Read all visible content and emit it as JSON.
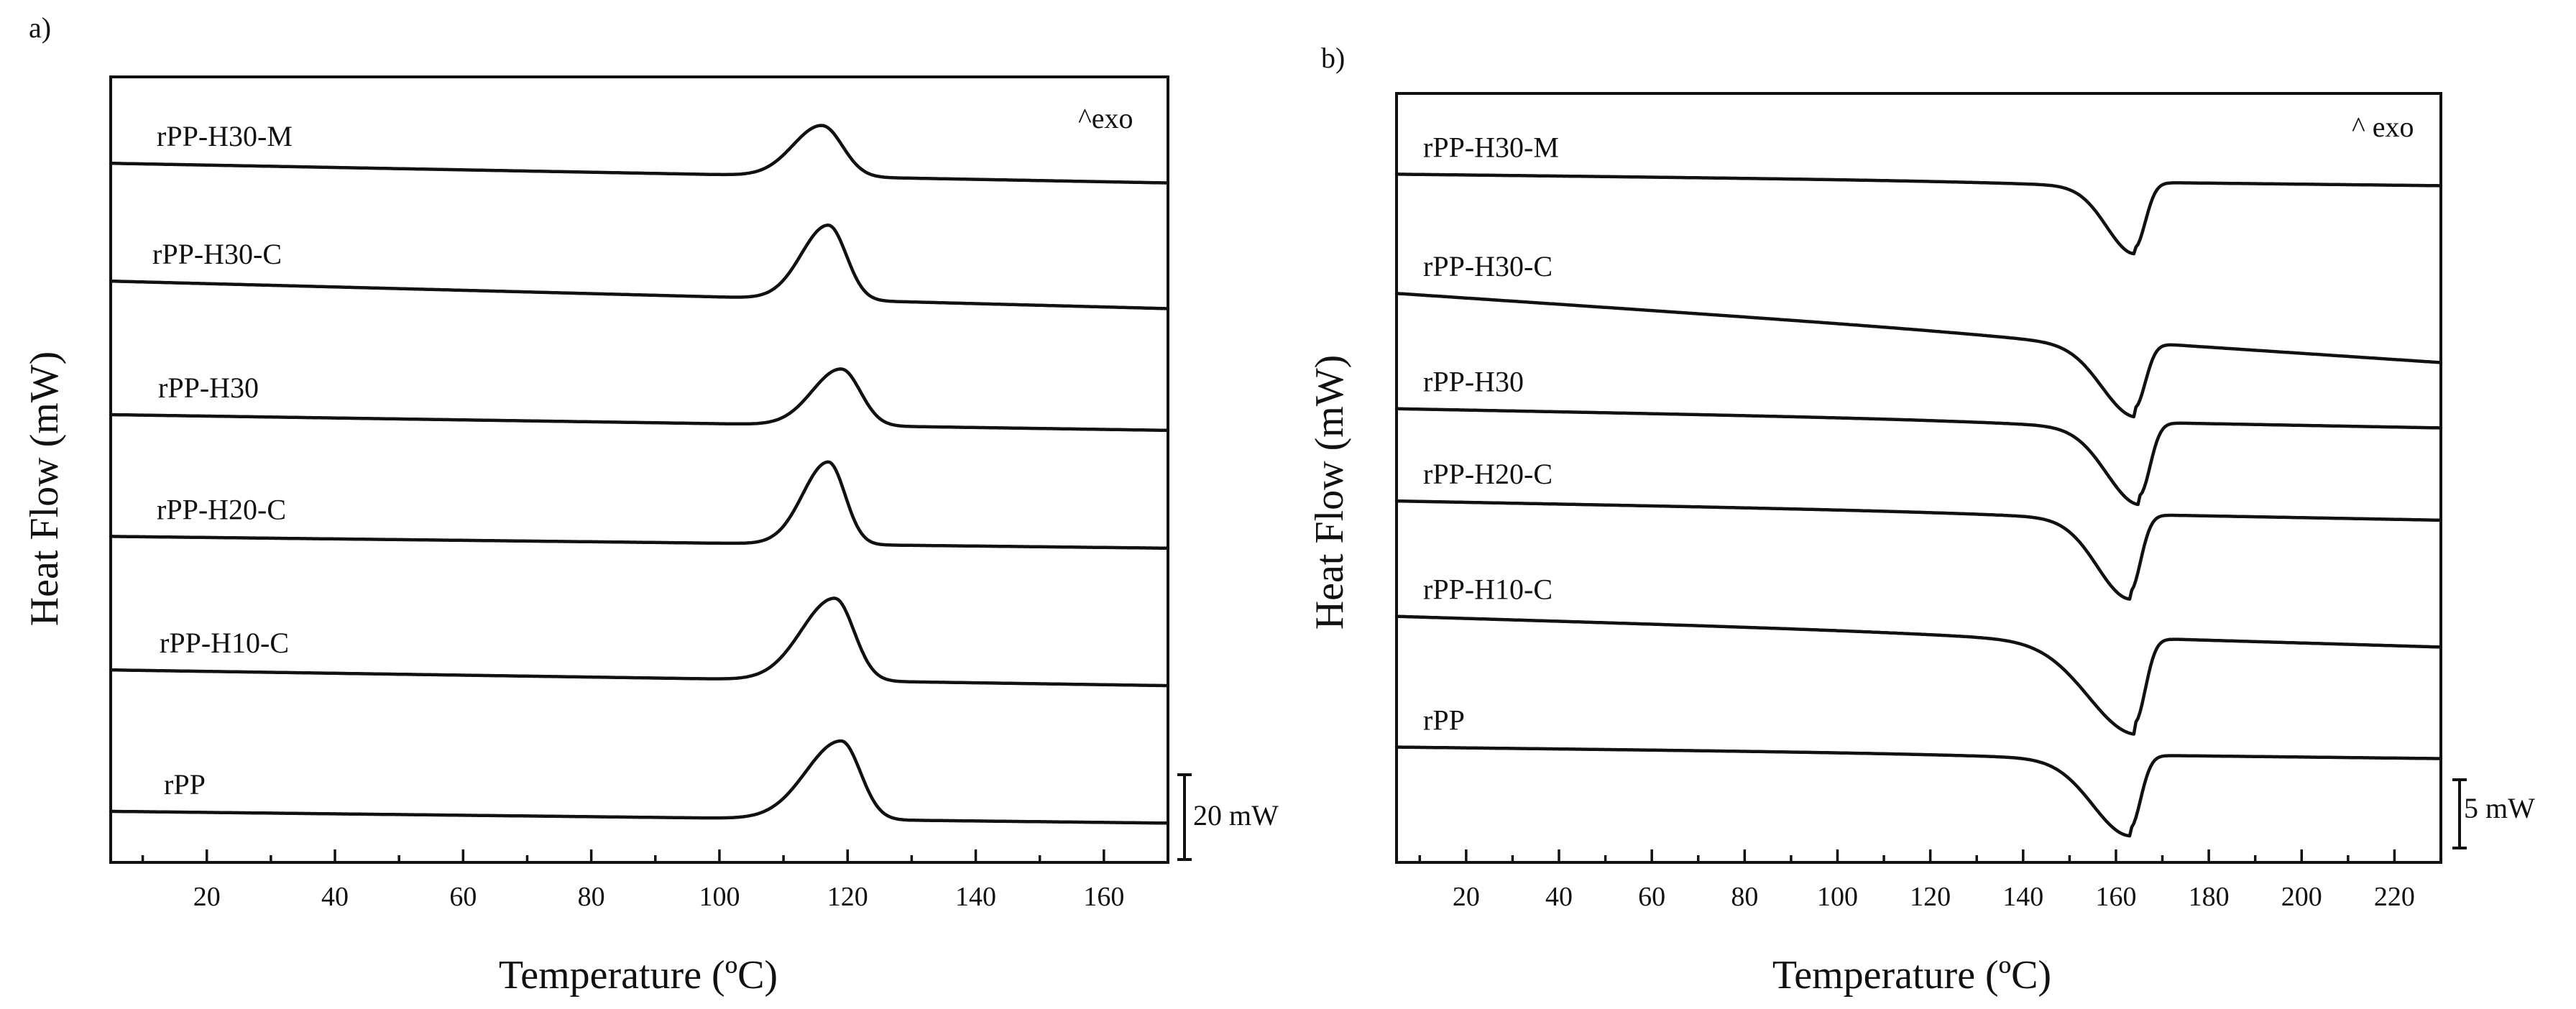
{
  "chart_data": [
    {
      "panel": "a)",
      "type": "line",
      "title": "",
      "xlabel": "Temperature (ºC)",
      "ylabel": "Heat Flow (mW)",
      "xlim": [
        5,
        170
      ],
      "xticks": [
        20,
        40,
        60,
        80,
        100,
        120,
        140,
        160
      ],
      "ylim": [
        0,
        100
      ],
      "grid": false,
      "exo_label": "^exo",
      "scale_bar": {
        "label": "20 mW",
        "value_mW": 20
      },
      "series": [
        {
          "name": "rPP-H30-M",
          "baseline_start": 89,
          "baseline_end": 86.5,
          "peak_temp": 116,
          "peak_height": 6.5,
          "width_left": 4.5,
          "width_right": 3.2
        },
        {
          "name": "rPP-H30-C",
          "baseline_start": 74,
          "baseline_end": 70.5,
          "peak_temp": 117,
          "peak_height": 9.5,
          "width_left": 4.2,
          "width_right": 2.8
        },
        {
          "name": "rPP-H30",
          "baseline_start": 57,
          "baseline_end": 55,
          "peak_temp": 119,
          "peak_height": 7.2,
          "width_left": 4.5,
          "width_right": 3.0
        },
        {
          "name": "rPP-H20-C",
          "baseline_start": 41.5,
          "baseline_end": 40,
          "peak_temp": 117,
          "peak_height": 10.5,
          "width_left": 4.0,
          "width_right": 2.6
        },
        {
          "name": "rPP-H10-C",
          "baseline_start": 24.5,
          "baseline_end": 22.5,
          "peak_temp": 118,
          "peak_height": 10.5,
          "width_left": 5.2,
          "width_right": 3.0
        },
        {
          "name": "rPP",
          "baseline_start": 6.5,
          "baseline_end": 5,
          "peak_temp": 119,
          "peak_height": 10,
          "width_left": 5.5,
          "width_right": 3.0
        }
      ]
    },
    {
      "panel": "b)",
      "type": "line",
      "title": "",
      "xlabel": "Temperature (ºC)",
      "ylabel": "Heat Flow (mW)",
      "xlim": [
        5,
        230
      ],
      "xticks": [
        20,
        40,
        60,
        80,
        100,
        120,
        140,
        160,
        180,
        200,
        220
      ],
      "ylim": [
        0,
        100
      ],
      "grid": false,
      "exo_label": "^ exo",
      "scale_bar": {
        "label": "5 mW",
        "value_mW": 5
      },
      "series": [
        {
          "name": "rPP-H30-M",
          "baseline_start": 89.5,
          "baseline_end": 88,
          "peak_temp": 164,
          "peak_depth": 8.5,
          "width_left": 6,
          "width_right": 2.3,
          "sag": 0.8
        },
        {
          "name": "rPP-H30-C",
          "baseline_start": 74,
          "baseline_end": 65,
          "peak_temp": 164,
          "peak_depth": 8.5,
          "width_left": 7,
          "width_right": 2.3,
          "sag": 1.2
        },
        {
          "name": "rPP-H30",
          "baseline_start": 59,
          "baseline_end": 56.5,
          "peak_temp": 165,
          "peak_depth": 9.5,
          "width_left": 7,
          "width_right": 2.3,
          "sag": 1.2
        },
        {
          "name": "rPP-H20-C",
          "baseline_start": 47,
          "baseline_end": 44.5,
          "peak_temp": 163,
          "peak_depth": 10,
          "width_left": 7,
          "width_right": 2.3,
          "sag": 1.0
        },
        {
          "name": "rPP-H10-C",
          "baseline_start": 32,
          "baseline_end": 28,
          "peak_temp": 164,
          "peak_depth": 11,
          "width_left": 10,
          "width_right": 2.3,
          "sag": 1.5
        },
        {
          "name": "rPP",
          "baseline_start": 15,
          "baseline_end": 13.5,
          "peak_temp": 163,
          "peak_depth": 9.5,
          "width_left": 8,
          "width_right": 2.3,
          "sag": 1.0
        }
      ]
    }
  ]
}
